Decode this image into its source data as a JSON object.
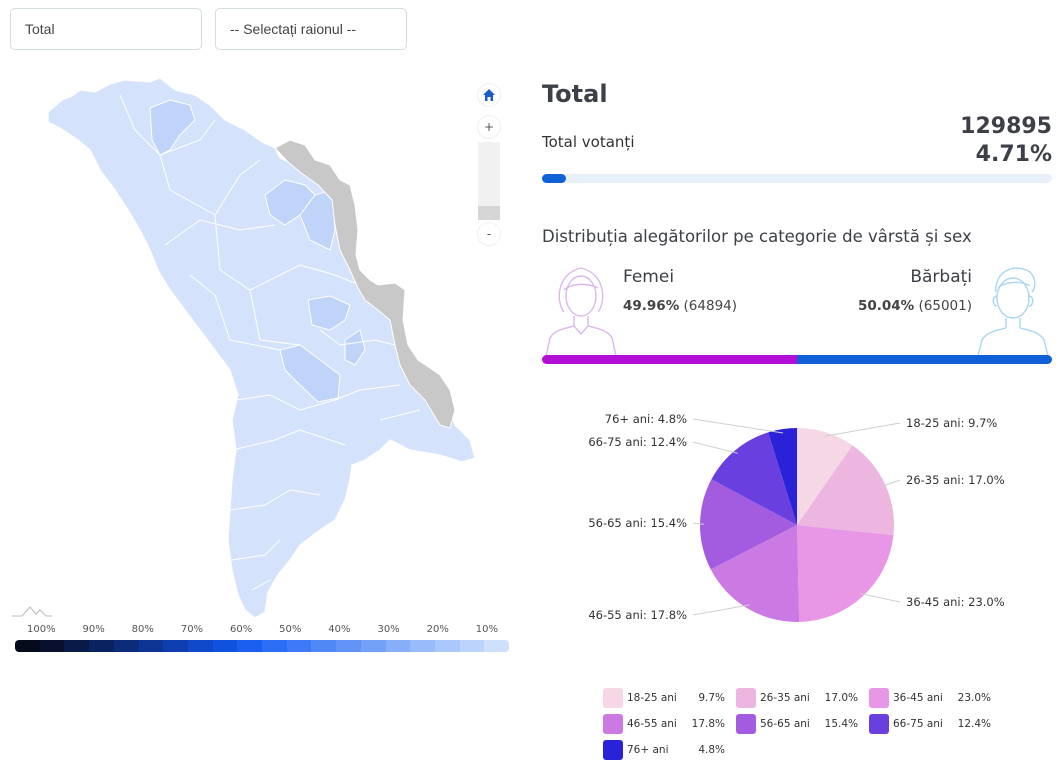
{
  "filters": {
    "region_select": {
      "value": "Total"
    },
    "raion_select": {
      "value": "-- Selectați raionul --"
    }
  },
  "map": {
    "controls": {
      "home_icon": "home-icon",
      "zoom_in": "+",
      "zoom_out": "-"
    },
    "colors": {
      "district_default": "#d4e3fb",
      "district_darker": "#bfd4f8",
      "transnistria": "#c8c8c8",
      "border": "#ffffff"
    },
    "scale": {
      "labels": [
        "100%",
        "90%",
        "80%",
        "70%",
        "60%",
        "50%",
        "40%",
        "30%",
        "20%",
        "10%"
      ],
      "colors": [
        "#050a1a",
        "#08102e",
        "#0a1a48",
        "#0b2260",
        "#0c2c7a",
        "#0d3594",
        "#0e3eae",
        "#0f48c8",
        "#1052dd",
        "#1a5ef0",
        "#2c6df5",
        "#3e7af5",
        "#5088f6",
        "#6294f7",
        "#74a1f8",
        "#86aef9",
        "#98bbfa",
        "#aac8fb",
        "#bcd4fc",
        "#cfe0fd"
      ]
    }
  },
  "summary": {
    "title": "Total",
    "votanti_label": "Total votanți",
    "votanti_count": "129895",
    "votanti_pct": "4.71%",
    "progress_pct": 4.71,
    "accent_color": "#1060d8"
  },
  "distribution": {
    "title": "Distribuția alegătorilor pe categorie de vârstă și sex",
    "female": {
      "label": "Femei",
      "pct": "49.96%",
      "count": "(64894)",
      "color": "#b20ed6",
      "icon": "female-avatar-icon"
    },
    "male": {
      "label": "Bărbați",
      "pct": "50.04%",
      "count": "(65001)",
      "color": "#1060d8",
      "icon": "male-avatar-icon"
    }
  },
  "chart_data": {
    "type": "pie",
    "title": "",
    "categories": [
      "18-25 ani",
      "26-35 ani",
      "36-45 ani",
      "46-55 ani",
      "56-65 ani",
      "66-75 ani",
      "76+ ani"
    ],
    "values": [
      9.7,
      17.0,
      23.0,
      17.8,
      15.4,
      12.4,
      4.8
    ],
    "value_labels": [
      "9.7%",
      "17.0%",
      "23.0%",
      "17.8%",
      "15.4%",
      "12.4%",
      "4.8%"
    ],
    "colors": [
      "#f5d7e6",
      "#ecb6e0",
      "#e897e6",
      "#cc7ae3",
      "#a35bdf",
      "#6a3fe0",
      "#2a22d8"
    ],
    "slice_labels": [
      "18-25 ani: 9.7%",
      "26-35 ani: 17.0%",
      "36-45 ani: 23.0%",
      "46-55 ani: 17.8%",
      "56-65 ani: 15.4%",
      "66-75 ani: 12.4%",
      "76+ ani: 4.8%"
    ],
    "start_angle": "12 o'clock, clockwise",
    "legend_position": "bottom"
  }
}
